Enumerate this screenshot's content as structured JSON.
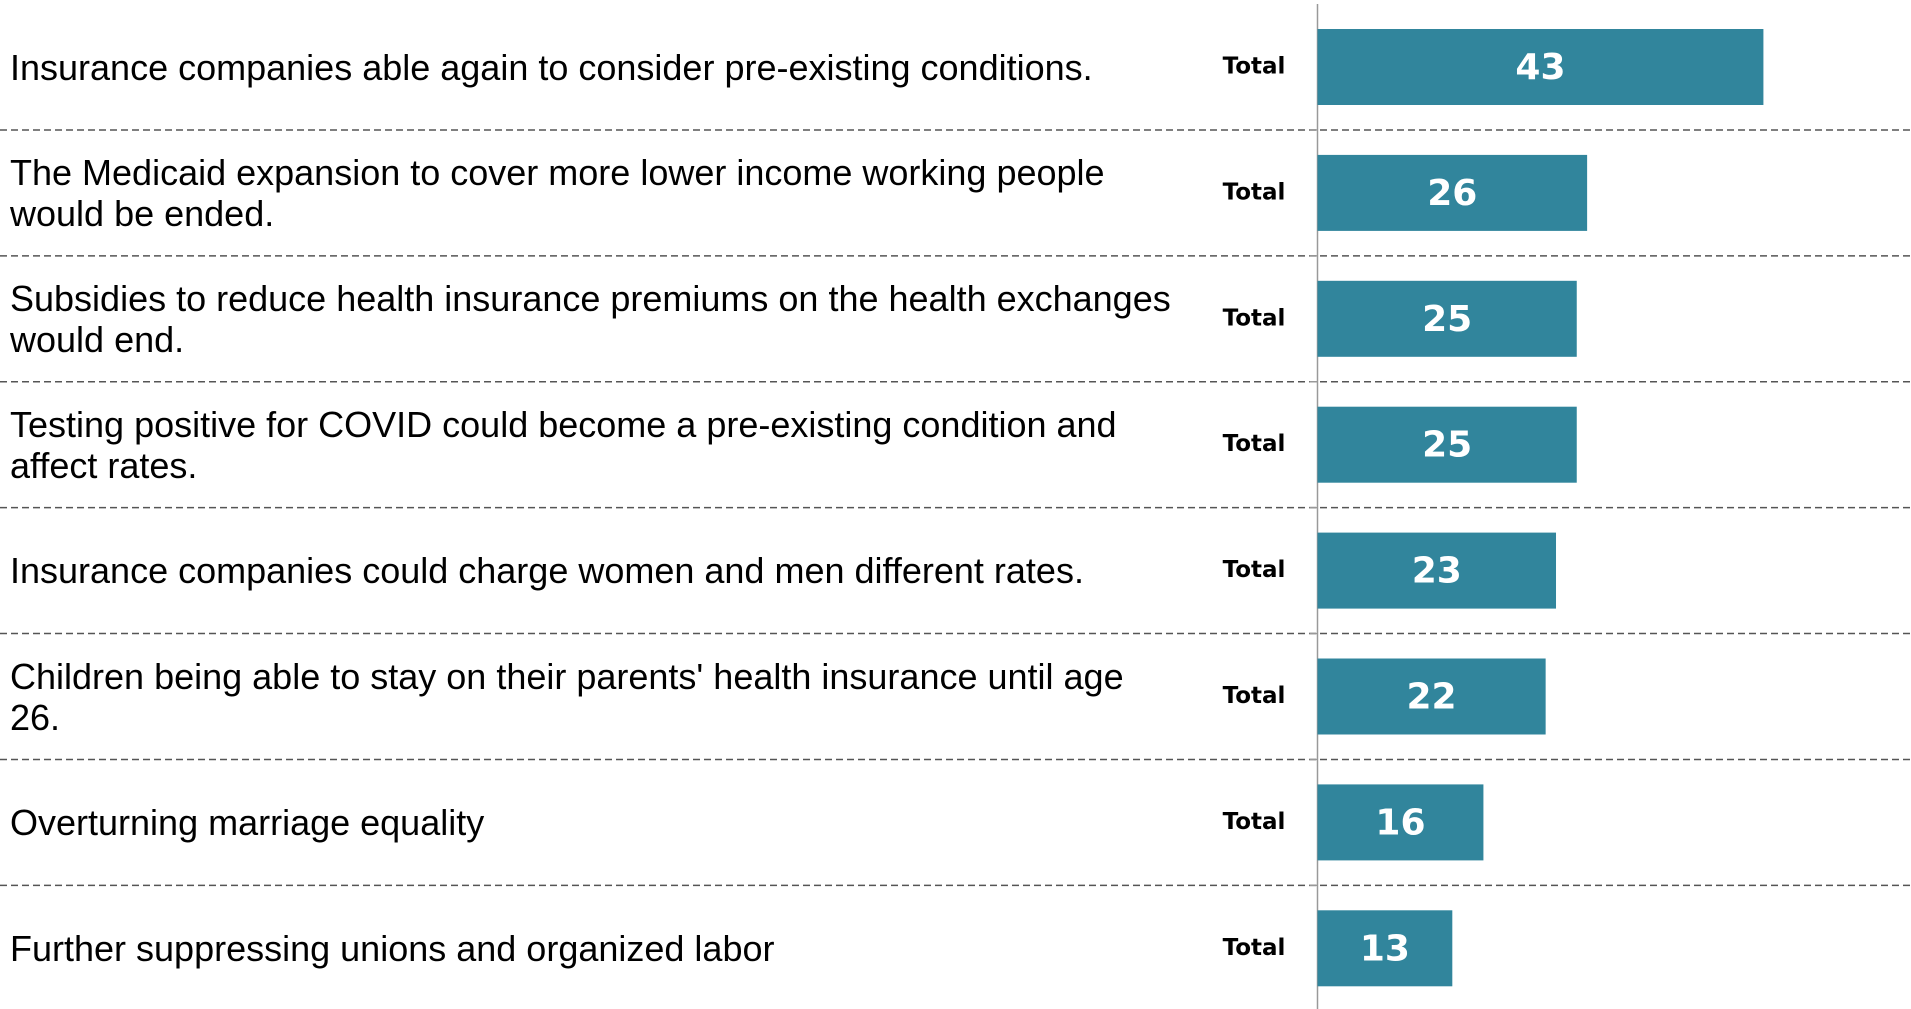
{
  "chart_data": {
    "type": "hbar",
    "categories": [
      "Insurance companies able again to consider pre-existing conditions.",
      "The Medicaid expansion to cover more lower income working people would be ended.",
      "Subsidies to reduce health insurance premiums on the health exchanges would end.",
      "Testing positive for COVID could become a pre-existing condition and affect rates.",
      "Insurance companies could charge women and men different rates.",
      "Children being able to stay on their parents' health insurance until age 26.",
      "Overturning marriage equality",
      "Further suppressing unions and organized labor"
    ],
    "series": [
      {
        "name": "Total",
        "color": "#31859c",
        "values": [
          43,
          26,
          25,
          25,
          23,
          22,
          16,
          13
        ]
      }
    ],
    "xlim": [
      0,
      50
    ]
  }
}
